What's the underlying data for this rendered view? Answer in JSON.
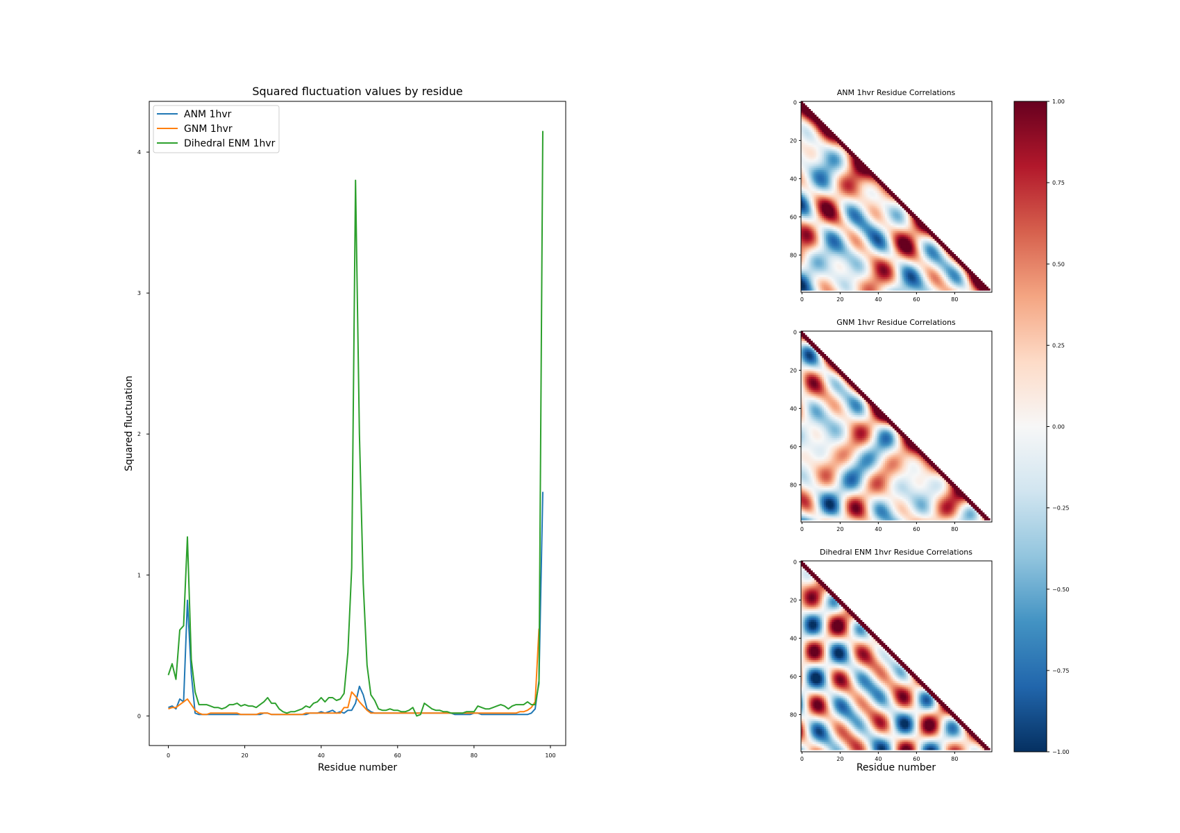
{
  "chart_data": [
    {
      "type": "line",
      "title": "Squared fluctuation values by residue",
      "xlabel": "Residue number",
      "ylabel": "Squared fluctuation",
      "xlim": [
        -5,
        104
      ],
      "ylim": [
        -0.21,
        4.36
      ],
      "xticks": [
        0,
        20,
        40,
        60,
        80,
        100
      ],
      "yticks": [
        0,
        1,
        2,
        3,
        4
      ],
      "grid": false,
      "legend_position": "top-left",
      "series": [
        {
          "name": "ANM 1hvr",
          "color": "#1f77b4",
          "values": [
            0.06,
            0.07,
            0.05,
            0.12,
            0.1,
            0.82,
            0.3,
            0.02,
            0.01,
            0.01,
            0.01,
            0.01,
            0.01,
            0.01,
            0.01,
            0.01,
            0.01,
            0.01,
            0.01,
            0.01,
            0.01,
            0.01,
            0.01,
            0.01,
            0.01,
            0.02,
            0.02,
            0.01,
            0.01,
            0.01,
            0.01,
            0.01,
            0.01,
            0.01,
            0.01,
            0.01,
            0.01,
            0.02,
            0.02,
            0.02,
            0.03,
            0.02,
            0.03,
            0.04,
            0.02,
            0.03,
            0.02,
            0.04,
            0.04,
            0.09,
            0.21,
            0.15,
            0.05,
            0.03,
            0.02,
            0.02,
            0.02,
            0.02,
            0.02,
            0.02,
            0.02,
            0.02,
            0.02,
            0.02,
            0.02,
            0.02,
            0.02,
            0.02,
            0.02,
            0.02,
            0.02,
            0.02,
            0.02,
            0.02,
            0.02,
            0.01,
            0.01,
            0.01,
            0.01,
            0.01,
            0.02,
            0.02,
            0.01,
            0.01,
            0.01,
            0.01,
            0.01,
            0.01,
            0.01,
            0.01,
            0.01,
            0.01,
            0.01,
            0.01,
            0.01,
            0.02,
            0.05,
            0.25,
            1.59
          ]
        },
        {
          "name": "GNM 1hvr",
          "color": "#ff7f0e",
          "values": [
            0.05,
            0.06,
            0.06,
            0.08,
            0.1,
            0.12,
            0.08,
            0.04,
            0.02,
            0.01,
            0.01,
            0.02,
            0.02,
            0.02,
            0.02,
            0.02,
            0.02,
            0.02,
            0.02,
            0.01,
            0.01,
            0.01,
            0.01,
            0.01,
            0.02,
            0.02,
            0.02,
            0.01,
            0.01,
            0.01,
            0.01,
            0.01,
            0.01,
            0.01,
            0.01,
            0.01,
            0.02,
            0.02,
            0.02,
            0.02,
            0.02,
            0.02,
            0.02,
            0.02,
            0.02,
            0.02,
            0.06,
            0.06,
            0.17,
            0.14,
            0.1,
            0.07,
            0.04,
            0.02,
            0.02,
            0.02,
            0.02,
            0.02,
            0.02,
            0.02,
            0.02,
            0.02,
            0.02,
            0.02,
            0.02,
            0.02,
            0.02,
            0.02,
            0.02,
            0.02,
            0.02,
            0.02,
            0.02,
            0.02,
            0.02,
            0.02,
            0.02,
            0.02,
            0.02,
            0.02,
            0.02,
            0.02,
            0.02,
            0.02,
            0.02,
            0.02,
            0.02,
            0.02,
            0.02,
            0.02,
            0.02,
            0.02,
            0.03,
            0.03,
            0.04,
            0.06,
            0.1,
            0.62
          ]
        },
        {
          "name": "Dihedral ENM 1hvr",
          "color": "#2ca02c",
          "values": [
            0.29,
            0.37,
            0.26,
            0.61,
            0.64,
            1.27,
            0.4,
            0.17,
            0.08,
            0.08,
            0.08,
            0.07,
            0.06,
            0.06,
            0.05,
            0.06,
            0.08,
            0.08,
            0.09,
            0.07,
            0.08,
            0.07,
            0.07,
            0.06,
            0.08,
            0.1,
            0.13,
            0.09,
            0.09,
            0.05,
            0.03,
            0.02,
            0.03,
            0.03,
            0.04,
            0.05,
            0.07,
            0.06,
            0.09,
            0.1,
            0.13,
            0.1,
            0.13,
            0.13,
            0.11,
            0.12,
            0.16,
            0.45,
            1.05,
            3.8,
            2.0,
            0.94,
            0.36,
            0.15,
            0.11,
            0.05,
            0.04,
            0.04,
            0.05,
            0.04,
            0.04,
            0.03,
            0.03,
            0.04,
            0.06,
            0.0,
            0.01,
            0.09,
            0.07,
            0.05,
            0.04,
            0.04,
            0.03,
            0.03,
            0.02,
            0.02,
            0.02,
            0.02,
            0.03,
            0.03,
            0.03,
            0.07,
            0.06,
            0.05,
            0.05,
            0.06,
            0.07,
            0.08,
            0.07,
            0.05,
            0.07,
            0.08,
            0.08,
            0.08,
            0.1,
            0.08,
            0.08,
            0.23,
            4.15
          ]
        }
      ]
    },
    {
      "type": "heatmap",
      "title": "ANM 1hvr Residue Correlations",
      "xticks": [
        0,
        20,
        40,
        60,
        80
      ],
      "yticks": [
        0,
        20,
        40,
        60,
        80
      ],
      "n_residues": 99,
      "shape": "lower-triangle"
    },
    {
      "type": "heatmap",
      "title": "GNM 1hvr Residue Correlations",
      "xticks": [
        0,
        20,
        40,
        60,
        80
      ],
      "yticks": [
        0,
        20,
        40,
        60,
        80
      ],
      "n_residues": 99,
      "shape": "lower-triangle"
    },
    {
      "type": "heatmap",
      "title": "Dihedral ENM 1hvr Residue Correlations",
      "xlabel": "Residue number",
      "xticks": [
        0,
        20,
        40,
        60,
        80
      ],
      "yticks": [
        0,
        20,
        40,
        60,
        80
      ],
      "n_residues": 99,
      "shape": "lower-triangle"
    },
    {
      "type": "colorbar",
      "colormap": "RdBu_r",
      "range": [
        -1.0,
        1.0
      ],
      "tick_labels": [
        "1.00",
        "0.75",
        "0.50",
        "0.25",
        "0.00",
        "−0.25",
        "−0.50",
        "−0.75",
        "−1.00"
      ]
    }
  ]
}
